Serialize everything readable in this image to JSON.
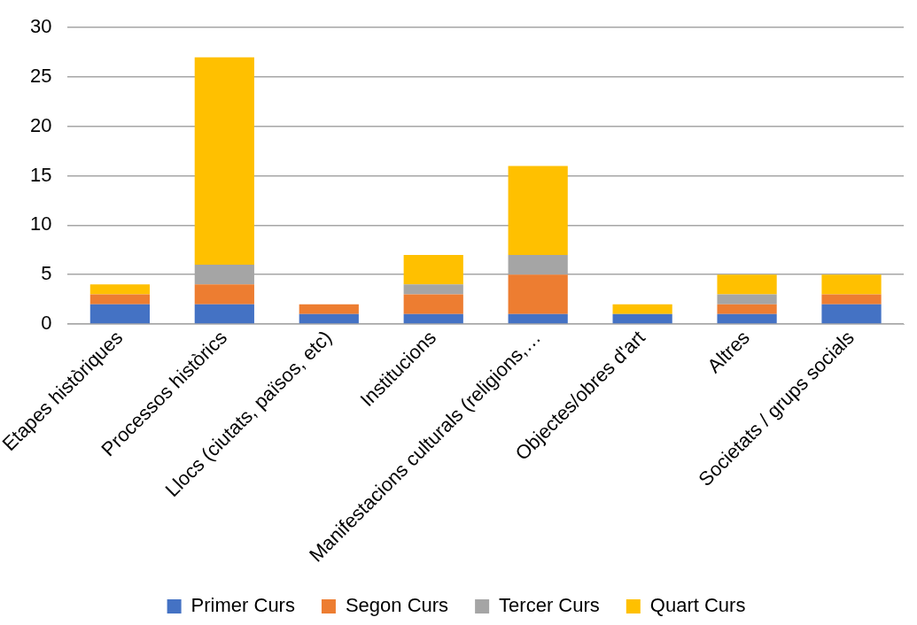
{
  "chart_data": {
    "type": "bar",
    "stacked": true,
    "categories": [
      "Etapes històriques",
      "Processos històrics",
      "Llocs (ciutats, països, etc)",
      "Institucions",
      "Manifestacions culturals (religions,…",
      "Objectes/obres d'art",
      "Altres",
      "Societats / grups socials"
    ],
    "series": [
      {
        "name": "Primer Curs",
        "color": "#4472c4",
        "values": [
          2,
          2,
          1,
          1,
          1,
          1,
          1,
          2
        ]
      },
      {
        "name": "Segon Curs",
        "color": "#ed7d31",
        "values": [
          1,
          2,
          1,
          2,
          4,
          0,
          1,
          1
        ]
      },
      {
        "name": "Tercer Curs",
        "color": "#a5a5a5",
        "values": [
          0,
          2,
          0,
          1,
          2,
          0,
          1,
          0
        ]
      },
      {
        "name": "Quart Curs",
        "color": "#ffc000",
        "values": [
          1,
          21,
          0,
          3,
          9,
          1,
          2,
          2
        ]
      }
    ],
    "ylim": [
      0,
      30
    ],
    "yticks": [
      0,
      5,
      10,
      15,
      20,
      25,
      30
    ],
    "grid": "y",
    "legend": "bottom"
  }
}
